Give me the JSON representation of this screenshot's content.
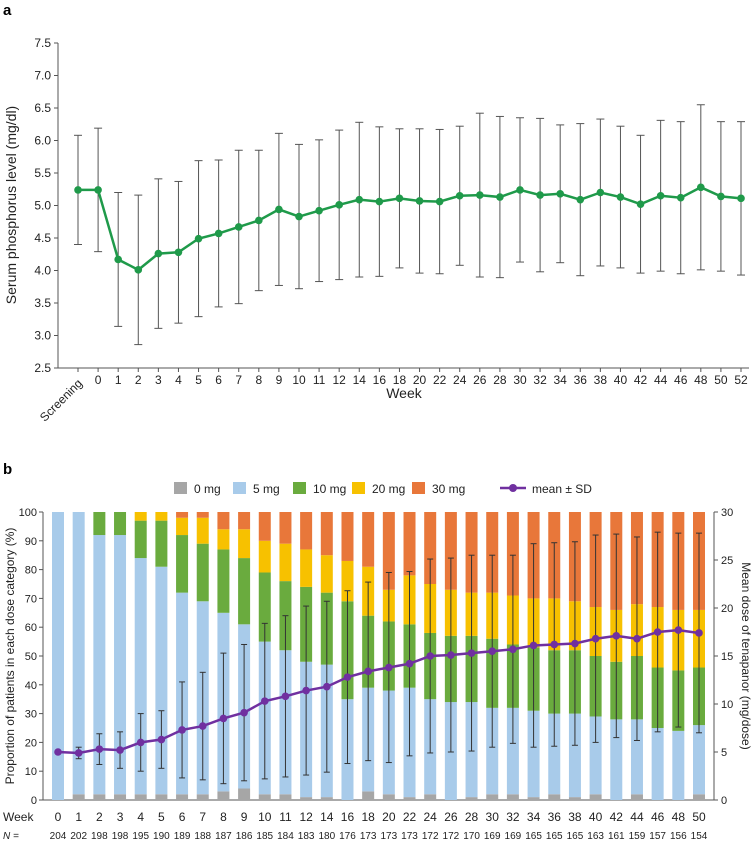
{
  "panel_a": {
    "label": "a"
  },
  "panel_b": {
    "label": "b"
  },
  "chart_data": [
    {
      "panel": "a",
      "type": "line",
      "xlabel": "Week",
      "ylabel": "Serum phosphorus level (mg/dl)",
      "ylim": [
        2.5,
        7.5
      ],
      "yticks": [
        "2.5",
        "3.0",
        "3.5",
        "4.0",
        "4.5",
        "5.0",
        "5.5",
        "6.0",
        "6.5",
        "7.0",
        "7.5"
      ],
      "categories": [
        "Screening",
        "0",
        "1",
        "2",
        "3",
        "4",
        "5",
        "6",
        "7",
        "8",
        "9",
        "10",
        "11",
        "12",
        "14",
        "16",
        "18",
        "20",
        "22",
        "24",
        "26",
        "28",
        "30",
        "32",
        "34",
        "36",
        "38",
        "40",
        "42",
        "44",
        "46",
        "48",
        "50",
        "52"
      ],
      "grid": false,
      "series": [
        {
          "color": "#1f9a4a",
          "values": [
            5.24,
            5.24,
            4.17,
            4.01,
            4.26,
            4.28,
            4.49,
            4.57,
            4.67,
            4.77,
            4.94,
            4.83,
            4.92,
            5.01,
            5.09,
            5.06,
            5.11,
            5.07,
            5.06,
            5.15,
            5.16,
            5.13,
            5.24,
            5.16,
            5.18,
            5.09,
            5.2,
            5.13,
            5.02,
            5.15,
            5.12,
            5.28,
            5.14,
            5.11
          ],
          "sd": [
            0.84,
            0.95,
            1.03,
            1.15,
            1.15,
            1.09,
            1.2,
            1.13,
            1.18,
            1.08,
            1.17,
            1.11,
            1.09,
            1.15,
            1.19,
            1.15,
            1.07,
            1.11,
            1.11,
            1.07,
            1.26,
            1.24,
            1.11,
            1.18,
            1.06,
            1.17,
            1.13,
            1.09,
            1.06,
            1.16,
            1.17,
            1.27,
            1.15,
            1.18
          ]
        }
      ]
    },
    {
      "panel": "b",
      "type": "bar",
      "stacked": true,
      "ylabel": "Proportion of patients in each dose category (%)",
      "y2label": "Mean dose of tenapanor (mg/dose)",
      "ylim": [
        0,
        100
      ],
      "yticks": [
        "0",
        "10",
        "20",
        "30",
        "40",
        "50",
        "60",
        "70",
        "80",
        "90",
        "100"
      ],
      "y2lim": [
        0,
        30
      ],
      "y2ticks": [
        "0",
        "5",
        "10",
        "15",
        "20",
        "25",
        "30"
      ],
      "grid": false,
      "legend_position": "top",
      "row_labels": {
        "week": "Week",
        "n": "N ="
      },
      "categories": [
        "0",
        "1",
        "2",
        "3",
        "4",
        "5",
        "6",
        "7",
        "8",
        "9",
        "10",
        "11",
        "12",
        "14",
        "16",
        "18",
        "20",
        "22",
        "24",
        "26",
        "28",
        "30",
        "32",
        "34",
        "36",
        "38",
        "40",
        "42",
        "44",
        "46",
        "48",
        "50"
      ],
      "n": [
        "204",
        "202",
        "198",
        "198",
        "195",
        "190",
        "189",
        "188",
        "187",
        "186",
        "185",
        "184",
        "183",
        "180",
        "176",
        "173",
        "173",
        "173",
        "172",
        "172",
        "170",
        "169",
        "169",
        "165",
        "165",
        "165",
        "163",
        "161",
        "159",
        "157",
        "156",
        "154"
      ],
      "series": [
        {
          "name": "0 mg",
          "color": "#a6a6a6",
          "values": [
            0,
            2,
            2,
            2,
            2,
            2,
            2,
            2,
            3,
            4,
            2,
            2,
            1,
            1,
            0,
            3,
            2,
            1,
            2,
            0,
            1,
            2,
            2,
            1,
            2,
            1,
            2,
            0,
            2,
            0,
            0,
            2
          ]
        },
        {
          "name": "5 mg",
          "color": "#a8cbea",
          "values": [
            100,
            98,
            90,
            90,
            82,
            79,
            70,
            67,
            62,
            57,
            53,
            50,
            47,
            46,
            35,
            36,
            36,
            38,
            33,
            34,
            33,
            30,
            30,
            30,
            28,
            29,
            27,
            28,
            26,
            25,
            24,
            24
          ]
        },
        {
          "name": "10 mg",
          "color": "#6aab3e",
          "values": [
            0,
            0,
            8,
            8,
            13,
            16,
            20,
            20,
            22,
            23,
            24,
            24,
            26,
            25,
            34,
            25,
            24,
            22,
            23,
            23,
            23,
            24,
            22,
            22,
            22,
            22,
            21,
            20,
            22,
            21,
            21,
            20
          ]
        },
        {
          "name": "20 mg",
          "color": "#f7c100",
          "values": [
            0,
            0,
            0,
            0,
            3,
            3,
            6,
            9,
            7,
            10,
            11,
            13,
            13,
            13,
            14,
            17,
            11,
            17,
            17,
            16,
            15,
            16,
            17,
            17,
            18,
            17,
            17,
            18,
            18,
            21,
            21,
            20
          ]
        },
        {
          "name": "30 mg",
          "color": "#e8773a",
          "values": [
            0,
            0,
            0,
            0,
            0,
            0,
            2,
            2,
            6,
            6,
            10,
            11,
            13,
            15,
            17,
            19,
            27,
            22,
            25,
            27,
            28,
            28,
            29,
            30,
            30,
            31,
            33,
            34,
            32,
            33,
            34,
            34
          ]
        }
      ],
      "mean_dose": {
        "name": "mean ± SD",
        "color": "#7030a0",
        "values": [
          5.0,
          4.9,
          5.3,
          5.2,
          6.0,
          6.3,
          7.3,
          7.7,
          8.5,
          9.1,
          10.3,
          10.8,
          11.4,
          11.8,
          12.8,
          13.4,
          13.8,
          14.2,
          15.0,
          15.1,
          15.3,
          15.5,
          15.7,
          16.1,
          16.2,
          16.3,
          16.8,
          17.1,
          16.8,
          17.5,
          17.7,
          17.4
        ],
        "sd": [
          0,
          0.6,
          1.6,
          1.9,
          3.0,
          3.0,
          5.0,
          5.6,
          6.8,
          7.1,
          8.1,
          8.4,
          8.8,
          8.9,
          9.0,
          9.3,
          9.9,
          9.6,
          10.1,
          10.1,
          10.2,
          10.0,
          9.8,
          10.6,
          10.6,
          10.6,
          10.8,
          10.6,
          10.6,
          10.4,
          10.1,
          10.4
        ]
      }
    }
  ]
}
